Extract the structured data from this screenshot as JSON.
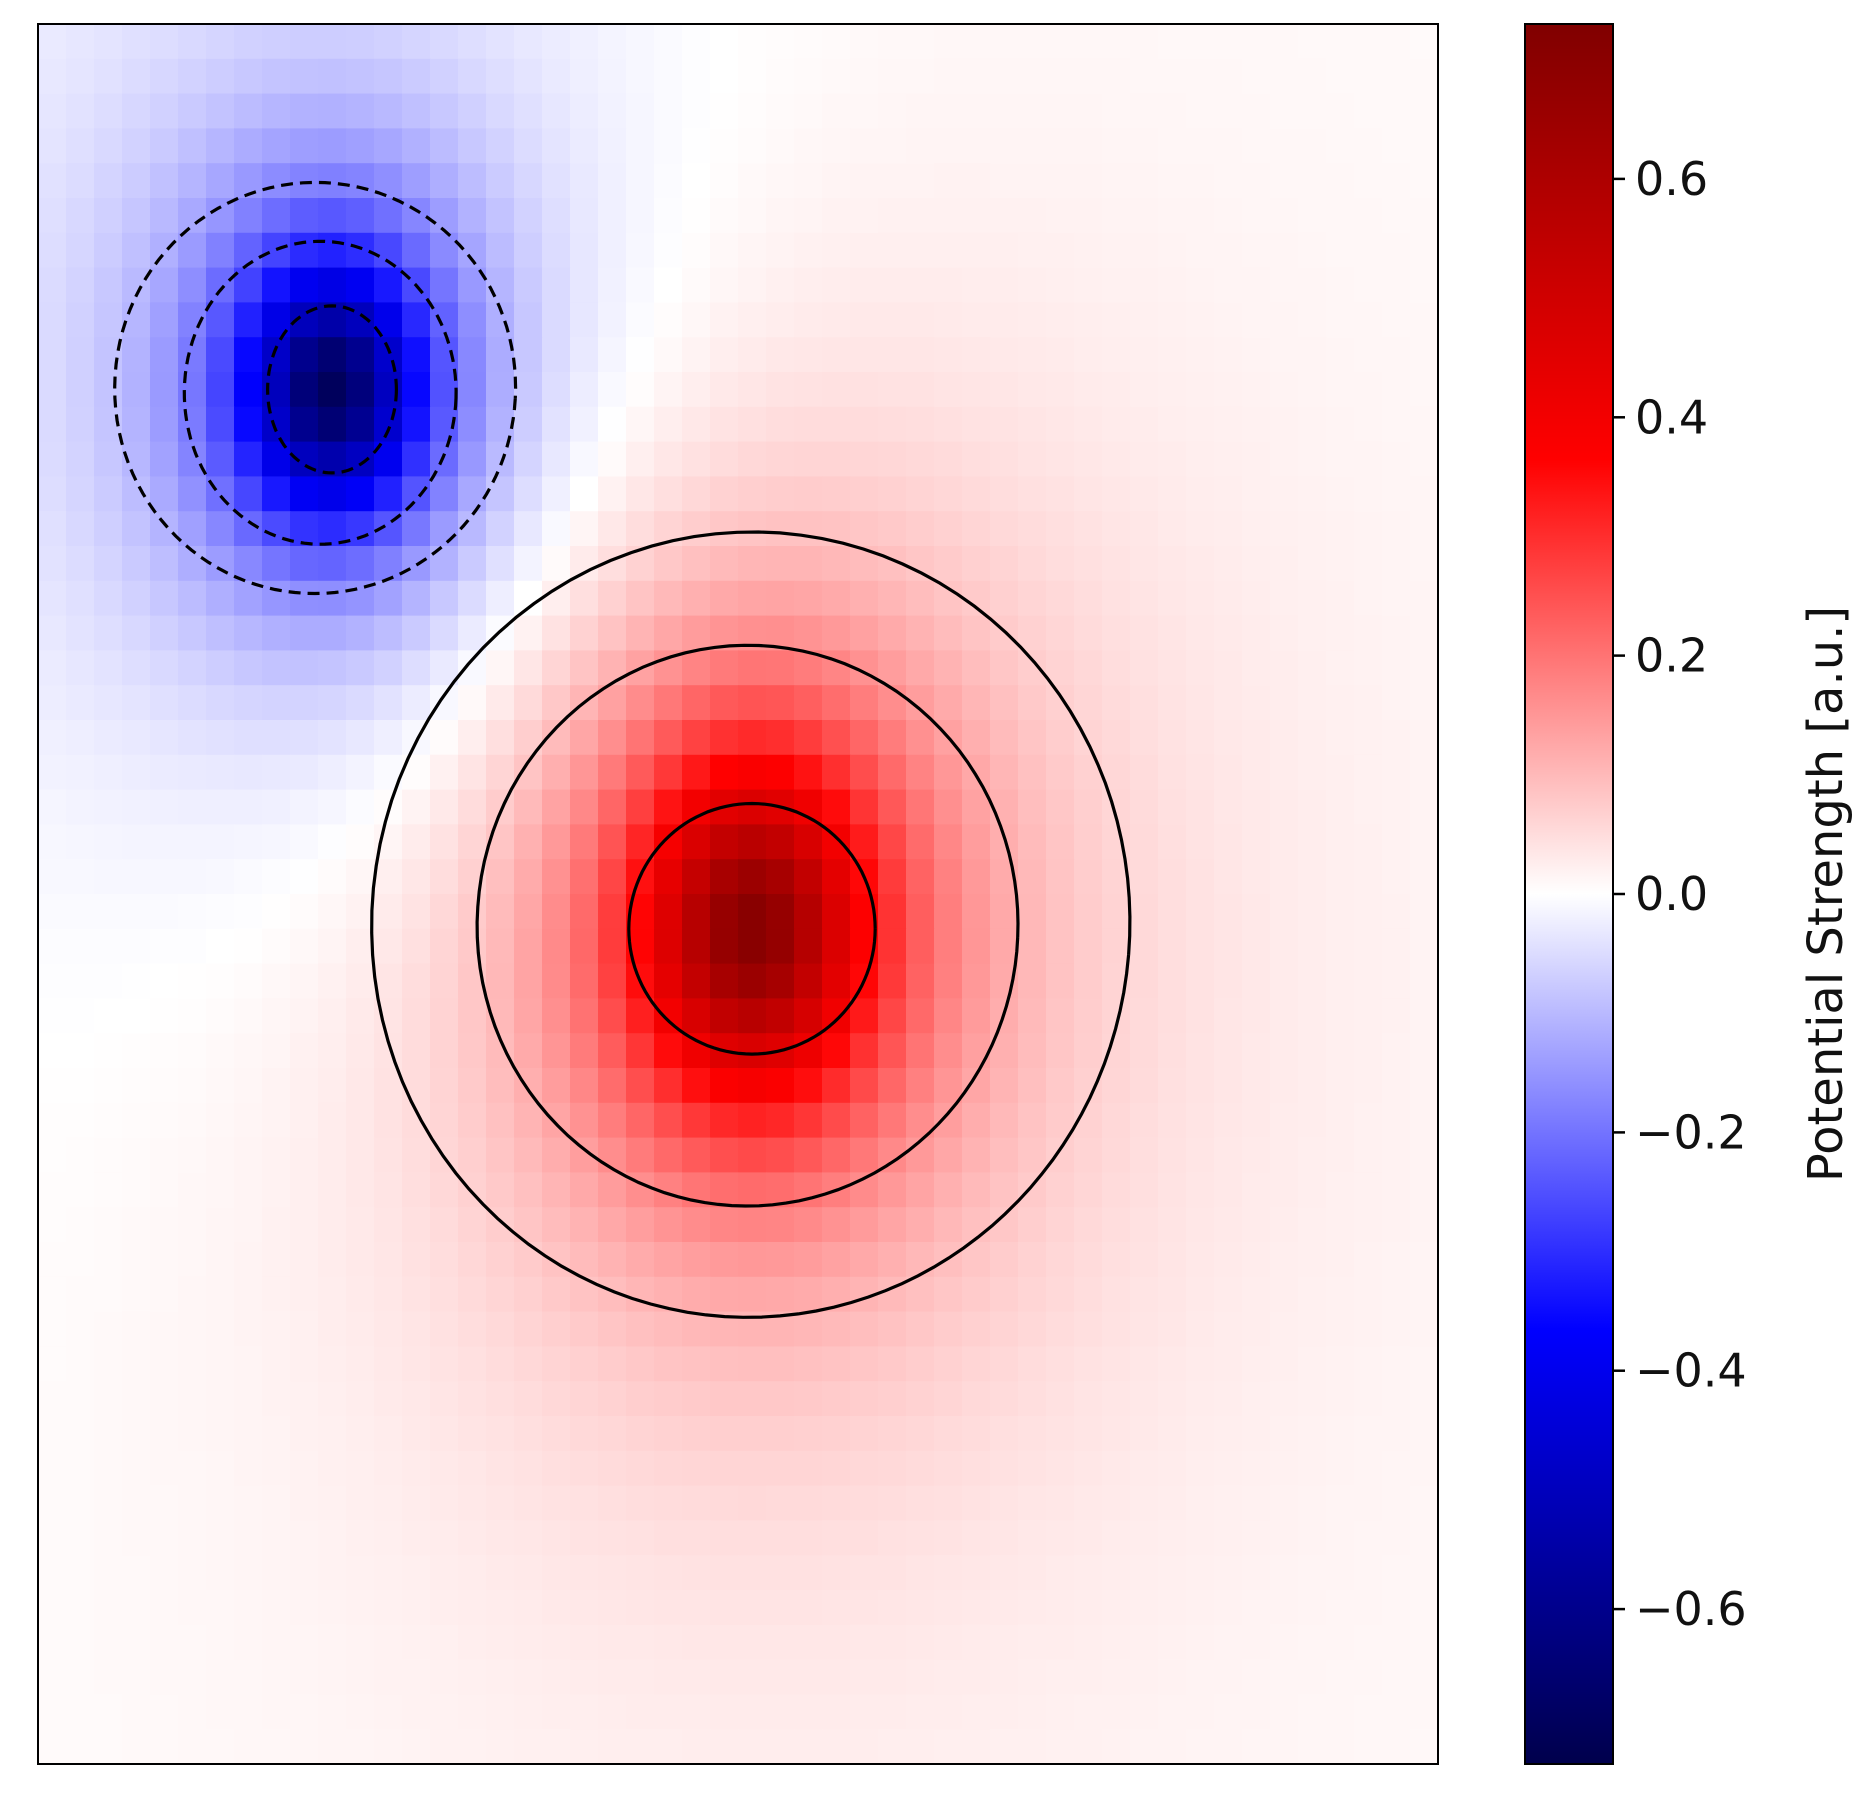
{
  "chart_data": {
    "type": "heatmap",
    "title": "",
    "xlabel": "",
    "ylabel": "",
    "grid": false,
    "colormap": "seismic",
    "value_range": [
      -0.73,
      0.73
    ],
    "grid_cells": [
      50,
      50
    ],
    "field": {
      "sources": [
        {
          "sign": "negative",
          "center": [
            0.21,
            0.21
          ],
          "peak": -0.73
        },
        {
          "sign": "positive",
          "center": [
            0.51,
            0.52
          ],
          "peak": 0.73
        }
      ]
    },
    "contours": {
      "negative_levels": [
        -0.4,
        -0.2,
        -0.1
      ],
      "positive_levels": [
        0.1,
        0.2,
        0.4
      ],
      "negative_style": "dashed",
      "positive_style": "solid",
      "color": "#000000"
    },
    "colorbar": {
      "label": "Potential Strength [a.u.]",
      "ticks": [
        -0.6,
        -0.4,
        -0.2,
        0.0,
        0.2,
        0.4,
        0.6
      ],
      "tick_labels": [
        "−0.6",
        "−0.4",
        "−0.2",
        "0.0",
        "0.2",
        "0.4",
        "0.6"
      ],
      "range": [
        -0.73,
        0.73
      ],
      "colors": {
        "low": "#00004c",
        "mid": "#ffffff",
        "high": "#800000"
      }
    }
  }
}
